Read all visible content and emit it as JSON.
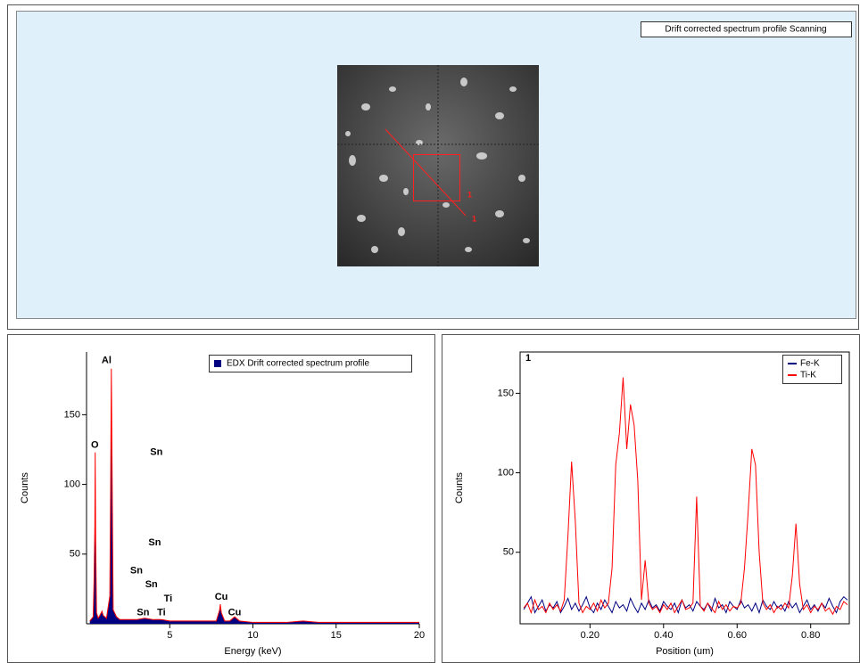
{
  "image_panel": {
    "label": "Drift corrected spectrum profile Scanning",
    "markers": [
      "1",
      "1"
    ]
  },
  "chart_data": [
    {
      "type": "area",
      "legend": "upper right",
      "color": "#000080",
      "outline_color": "#ff0000",
      "xlabel": "Energy (keV)",
      "ylabel": "Counts",
      "xlim": [
        0,
        20
      ],
      "ylim": [
        0,
        195
      ],
      "xticks": [
        5,
        10,
        15,
        20
      ],
      "yticks": [
        50,
        100,
        150
      ],
      "x": [
        0.2,
        0.4,
        0.45,
        0.5,
        0.52,
        0.55,
        0.6,
        0.7,
        0.8,
        0.93,
        1.0,
        1.2,
        1.4,
        1.45,
        1.49,
        1.53,
        1.6,
        1.8,
        2.0,
        2.5,
        3.0,
        3.5,
        4.0,
        4.5,
        5.0,
        6.0,
        7.0,
        7.8,
        8.0,
        8.04,
        8.1,
        8.3,
        8.6,
        8.9,
        9.2,
        10,
        12,
        13,
        14,
        16,
        18,
        20
      ],
      "series": [
        {
          "name": "EDX Drift corrected spectrum profile",
          "color": "#000080",
          "values": [
            2,
            5,
            30,
            70,
            123,
            60,
            8,
            4,
            6,
            9,
            6,
            4,
            20,
            100,
            183,
            120,
            10,
            5,
            3,
            3,
            3,
            4,
            3,
            3,
            2,
            2,
            2,
            2,
            10,
            14,
            8,
            2,
            2,
            5,
            2,
            1,
            1,
            2,
            1,
            1,
            1,
            1
          ]
        }
      ],
      "annotations": [
        {
          "text": "Al",
          "x": 1.2,
          "y": 189
        },
        {
          "text": "O",
          "x": 0.5,
          "y": 128
        },
        {
          "text": "Sn",
          "x": 4.2,
          "y": 123
        },
        {
          "text": "Sn",
          "x": 4.1,
          "y": 58
        },
        {
          "text": "Sn",
          "x": 3.0,
          "y": 38
        },
        {
          "text": "Sn",
          "x": 3.9,
          "y": 28
        },
        {
          "text": "Sn",
          "x": 3.4,
          "y": 8
        },
        {
          "text": "Ti",
          "x": 4.9,
          "y": 18
        },
        {
          "text": "Ti",
          "x": 4.5,
          "y": 8
        },
        {
          "text": "Cu",
          "x": 8.1,
          "y": 19
        },
        {
          "text": "Cu",
          "x": 8.9,
          "y": 8
        }
      ]
    },
    {
      "type": "line",
      "title": "1",
      "legend": "upper right",
      "xlabel": "Position (um)",
      "ylabel": "Counts",
      "xlim": [
        0.01,
        0.905
      ],
      "ylim": [
        5,
        176
      ],
      "xticks": [
        {
          "value": 0.2,
          "label": "0.20"
        },
        {
          "value": 0.4,
          "label": "0.40"
        },
        {
          "value": 0.6,
          "label": "0.60"
        },
        {
          "value": 0.8,
          "label": "0.80"
        }
      ],
      "yticks": [
        50,
        100,
        150
      ],
      "x": [
        0.02,
        0.03,
        0.04,
        0.05,
        0.06,
        0.07,
        0.08,
        0.09,
        0.1,
        0.11,
        0.12,
        0.13,
        0.14,
        0.15,
        0.16,
        0.17,
        0.18,
        0.19,
        0.2,
        0.21,
        0.22,
        0.23,
        0.24,
        0.25,
        0.26,
        0.27,
        0.28,
        0.29,
        0.3,
        0.31,
        0.32,
        0.33,
        0.34,
        0.35,
        0.36,
        0.37,
        0.38,
        0.39,
        0.4,
        0.41,
        0.42,
        0.43,
        0.44,
        0.45,
        0.46,
        0.47,
        0.48,
        0.49,
        0.5,
        0.51,
        0.52,
        0.53,
        0.54,
        0.55,
        0.56,
        0.57,
        0.58,
        0.59,
        0.6,
        0.61,
        0.62,
        0.63,
        0.64,
        0.65,
        0.66,
        0.67,
        0.68,
        0.69,
        0.7,
        0.71,
        0.72,
        0.73,
        0.74,
        0.75,
        0.76,
        0.77,
        0.78,
        0.79,
        0.8,
        0.81,
        0.82,
        0.83,
        0.84,
        0.85,
        0.86,
        0.87,
        0.88,
        0.89,
        0.9
      ],
      "series": [
        {
          "name": "Fe-K",
          "color": "#000080",
          "values": [
            14,
            18,
            22,
            12,
            16,
            20,
            13,
            17,
            15,
            19,
            12,
            16,
            21,
            14,
            18,
            13,
            17,
            22,
            15,
            12,
            18,
            14,
            20,
            16,
            12,
            19,
            15,
            17,
            13,
            21,
            16,
            12,
            18,
            14,
            20,
            15,
            17,
            13,
            19,
            16,
            14,
            18,
            12,
            20,
            15,
            17,
            13,
            19,
            16,
            14,
            18,
            13,
            21,
            15,
            17,
            12,
            19,
            16,
            14,
            20,
            15,
            17,
            13,
            18,
            12,
            20,
            16,
            14,
            19,
            15,
            17,
            13,
            19,
            15,
            18,
            12,
            16,
            20,
            14,
            17,
            13,
            18,
            15,
            21,
            16,
            12,
            19,
            22,
            20
          ]
        },
        {
          "name": "Ti-K",
          "color": "#ff0000",
          "values": [
            15,
            18,
            12,
            20,
            14,
            16,
            12,
            18,
            14,
            17,
            13,
            20,
            60,
            107,
            70,
            18,
            12,
            16,
            14,
            18,
            13,
            20,
            15,
            18,
            40,
            105,
            125,
            160,
            115,
            143,
            130,
            95,
            20,
            45,
            18,
            14,
            16,
            12,
            17,
            14,
            18,
            12,
            16,
            20,
            14,
            15,
            18,
            85,
            16,
            13,
            18,
            15,
            12,
            19,
            14,
            17,
            13,
            16,
            15,
            18,
            40,
            75,
            115,
            105,
            50,
            18,
            14,
            17,
            12,
            16,
            14,
            18,
            15,
            35,
            68,
            30,
            14,
            17,
            12,
            16,
            14,
            18,
            13,
            15,
            11,
            16,
            14,
            19,
            17
          ]
        }
      ]
    }
  ]
}
